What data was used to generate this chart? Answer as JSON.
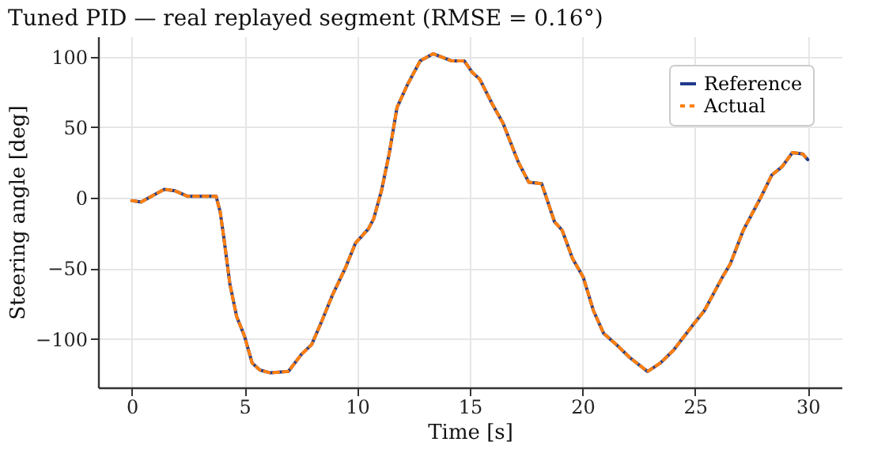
{
  "chart_data": {
    "type": "line",
    "title": "Tuned PID — real replayed segment  (RMSE = 0.16°)",
    "xlabel": "Time [s]",
    "ylabel": "Steering angle [deg]",
    "x": [
      0,
      0.41,
      0.87,
      1.44,
      1.9,
      2.48,
      3.74,
      3.92,
      4.08,
      4.35,
      4.65,
      5.0,
      5.34,
      5.68,
      6.15,
      6.95,
      7.52,
      7.98,
      8.44,
      8.9,
      9.47,
      9.93,
      10.5,
      10.73,
      11.08,
      11.42,
      11.77,
      12.23,
      12.8,
      13.37,
      14.18,
      14.75,
      15.1,
      15.44,
      16.01,
      16.47,
      17.16,
      17.62,
      18.19,
      18.76,
      19.1,
      19.56,
      20.03,
      20.49,
      20.94,
      21.51,
      22.09,
      22.89,
      23.46,
      24.04,
      24.96,
      25.41,
      26.22,
      26.56,
      27.14,
      27.94,
      28.4,
      28.86,
      29.32,
      29.78,
      30
    ],
    "series": [
      {
        "name": "Reference",
        "color": "#1f3b8c",
        "line_style": "solid",
        "values": [
          -2,
          -3,
          1,
          6,
          5,
          1,
          1,
          -10,
          -28,
          -61,
          -84,
          -98,
          -117,
          -122,
          -124,
          -123,
          -111,
          -104,
          -87,
          -69,
          -50,
          -32,
          -22,
          -15,
          5,
          31,
          64,
          80,
          97,
          102,
          97,
          97,
          89,
          84,
          66,
          53,
          25,
          11,
          10,
          -17,
          -23,
          -43,
          -56,
          -80,
          -96,
          -104,
          -113,
          -123,
          -117,
          -108,
          -89,
          -80,
          -56,
          -47,
          -23,
          1,
          16,
          22,
          32,
          31,
          27
        ]
      },
      {
        "name": "Actual",
        "color": "#ff7f0e",
        "line_style": "dashed",
        "values": [
          -2,
          -3,
          1,
          6,
          5,
          1,
          1,
          -10,
          -28,
          -61,
          -84,
          -98,
          -117,
          -122,
          -124,
          -123,
          -111,
          -104,
          -87,
          -69,
          -50,
          -32,
          -22,
          -15,
          5,
          31,
          64,
          80,
          97,
          102,
          97,
          97,
          89,
          84,
          66,
          53,
          25,
          11,
          10,
          -17,
          -23,
          -43,
          -56,
          -80,
          -96,
          -104,
          -113,
          -123,
          -117,
          -108,
          -89,
          -80,
          -56,
          -47,
          -23,
          1,
          16,
          22,
          32,
          31,
          27
        ]
      }
    ],
    "xlim": [
      -1.5,
      31.5
    ],
    "xticks": [
      0,
      5,
      10,
      15,
      20,
      25,
      30
    ],
    "ylim": [
      -134.3,
      114.3
    ],
    "yticks": [
      -100,
      -50,
      0,
      50,
      100
    ],
    "grid": true,
    "legend": "top right",
    "marker": "none"
  }
}
